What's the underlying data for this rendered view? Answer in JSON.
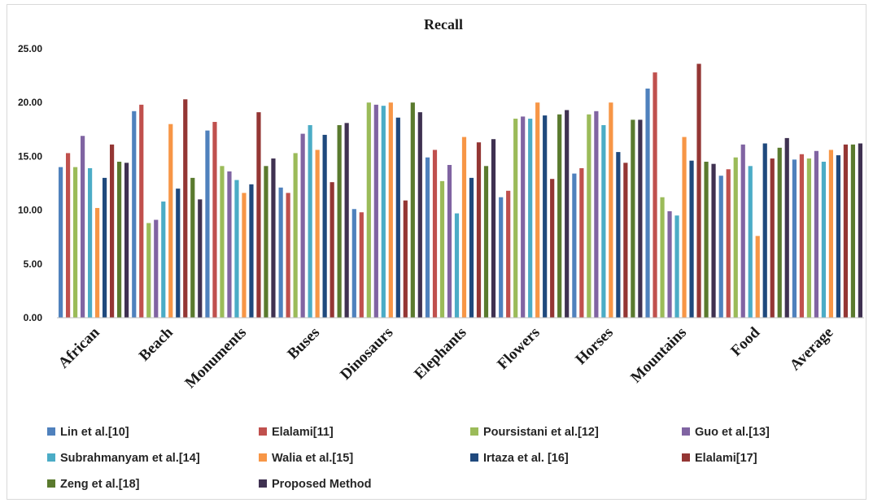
{
  "chart_data": {
    "type": "bar",
    "title": "Recall",
    "xlabel": "",
    "ylabel": "",
    "ylim": [
      0,
      25
    ],
    "yticks": [
      "0.00",
      "5.00",
      "10.00",
      "15.00",
      "20.00",
      "25.00"
    ],
    "grid": false,
    "legend_position": "bottom",
    "categories": [
      "African",
      "Beach",
      "Monuments",
      "Buses",
      "Dinosaurs",
      "Elephants",
      "Flowers",
      "Horses",
      "Mountains",
      "Food",
      "Average"
    ],
    "series": [
      {
        "name": "Lin et al.[10]",
        "color": "#4f81bd",
        "values": [
          14.0,
          19.2,
          17.4,
          12.1,
          10.1,
          14.9,
          11.2,
          13.4,
          21.3,
          13.2,
          14.7
        ]
      },
      {
        "name": "Elalami[11]",
        "color": "#c0504d",
        "values": [
          15.3,
          19.8,
          18.2,
          11.6,
          9.8,
          15.6,
          11.8,
          13.9,
          22.8,
          13.8,
          15.2
        ]
      },
      {
        "name": "Poursistani et al.[12]",
        "color": "#9bbb59",
        "values": [
          14.0,
          8.8,
          14.1,
          15.3,
          20.0,
          12.7,
          18.5,
          18.9,
          11.2,
          14.9,
          14.8
        ]
      },
      {
        "name": "Guo et al.[13]",
        "color": "#8064a2",
        "values": [
          16.9,
          9.1,
          13.6,
          17.1,
          19.8,
          14.2,
          18.7,
          19.2,
          9.9,
          16.1,
          15.5
        ]
      },
      {
        "name": "Subrahmanyam et al.[14]",
        "color": "#4bacc6",
        "values": [
          13.9,
          10.8,
          12.8,
          17.9,
          19.7,
          9.7,
          18.5,
          17.9,
          9.5,
          14.1,
          14.5
        ]
      },
      {
        "name": "Walia et al.[15]",
        "color": "#f79646",
        "values": [
          10.2,
          18.0,
          11.6,
          15.6,
          20.0,
          16.8,
          20.0,
          20.0,
          16.8,
          7.6,
          15.6
        ]
      },
      {
        "name": "Irtaza et al. [16]",
        "color": "#1f497d",
        "values": [
          13.0,
          12.0,
          12.4,
          17.0,
          18.6,
          13.0,
          18.8,
          15.4,
          14.6,
          16.2,
          15.1
        ]
      },
      {
        "name": "Elalami[17]",
        "color": "#943634",
        "values": [
          16.1,
          20.3,
          19.1,
          12.6,
          10.9,
          16.3,
          12.9,
          14.4,
          23.6,
          14.8,
          16.1
        ]
      },
      {
        "name": "Zeng et al.[18]",
        "color": "#5a7a2e",
        "values": [
          14.5,
          13.0,
          14.1,
          17.9,
          20.0,
          14.1,
          18.9,
          18.4,
          14.5,
          15.8,
          16.1
        ]
      },
      {
        "name": "Proposed Method",
        "color": "#3f3151",
        "values": [
          14.4,
          11.0,
          14.8,
          18.1,
          19.1,
          16.6,
          19.3,
          18.4,
          14.3,
          16.7,
          16.2
        ]
      }
    ]
  }
}
